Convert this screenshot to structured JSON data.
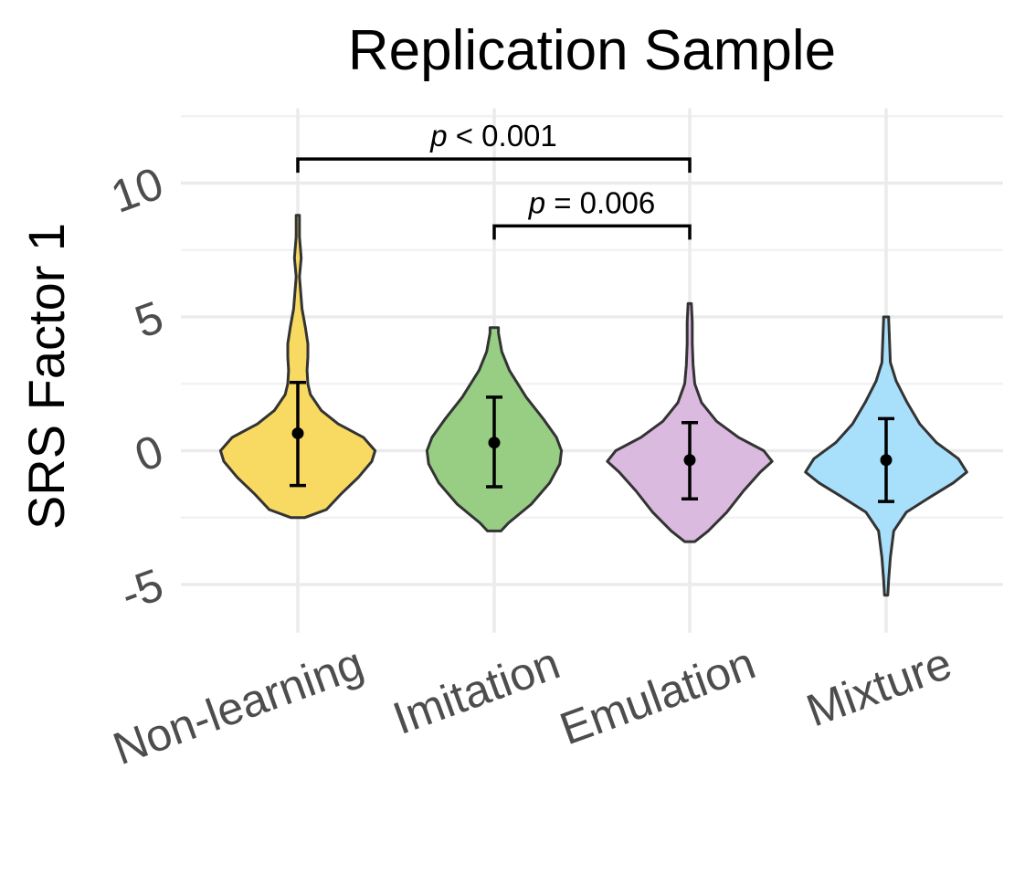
{
  "chart_data": {
    "type": "violin",
    "title": "Replication Sample",
    "ylabel": "SRS Factor 1",
    "xlabel": "",
    "ylim": [
      -6.8,
      12.8
    ],
    "yticks": [
      -5,
      0,
      5,
      10
    ],
    "ytick_labels": [
      "-5",
      "0",
      "5",
      "10"
    ],
    "grid": true,
    "categories": [
      "Non-learning",
      "Imitation",
      "Emulation",
      "Mixture"
    ],
    "colors": [
      "#F8DA62",
      "#97CE84",
      "#DABADE",
      "#A8E0FC"
    ],
    "series": [
      {
        "category": "Non-learning",
        "mean": 0.65,
        "ci_low": -1.3,
        "ci_high": 2.55,
        "density": [
          [
            -2.5,
            0.08
          ],
          [
            -2.2,
            0.34
          ],
          [
            -1.6,
            0.52
          ],
          [
            -1.0,
            0.72
          ],
          [
            -0.4,
            0.88
          ],
          [
            0.0,
            0.92
          ],
          [
            0.5,
            0.78
          ],
          [
            1.0,
            0.48
          ],
          [
            1.5,
            0.28
          ],
          [
            2.1,
            0.15
          ],
          [
            2.5,
            0.12
          ],
          [
            3.0,
            0.11
          ],
          [
            3.5,
            0.12
          ],
          [
            4.0,
            0.12
          ],
          [
            4.6,
            0.09
          ],
          [
            5.3,
            0.05
          ],
          [
            6.5,
            0.02
          ],
          [
            7.2,
            0.04
          ],
          [
            8.0,
            0.02
          ],
          [
            8.8,
            0.02
          ]
        ]
      },
      {
        "category": "Imitation",
        "mean": 0.3,
        "ci_low": -1.35,
        "ci_high": 2.0,
        "density": [
          [
            -3.0,
            0.08
          ],
          [
            -2.7,
            0.17
          ],
          [
            -2.0,
            0.44
          ],
          [
            -1.2,
            0.66
          ],
          [
            -0.5,
            0.78
          ],
          [
            0.0,
            0.8
          ],
          [
            0.5,
            0.74
          ],
          [
            1.2,
            0.58
          ],
          [
            2.0,
            0.38
          ],
          [
            3.0,
            0.18
          ],
          [
            3.7,
            0.09
          ],
          [
            4.4,
            0.05
          ],
          [
            4.6,
            0.05
          ]
        ]
      },
      {
        "category": "Emulation",
        "mean": -0.35,
        "ci_low": -1.8,
        "ci_high": 1.05,
        "density": [
          [
            -3.4,
            0.06
          ],
          [
            -3.0,
            0.22
          ],
          [
            -2.3,
            0.44
          ],
          [
            -1.5,
            0.64
          ],
          [
            -0.8,
            0.84
          ],
          [
            -0.4,
            0.98
          ],
          [
            0.0,
            0.88
          ],
          [
            0.5,
            0.58
          ],
          [
            1.1,
            0.32
          ],
          [
            1.8,
            0.14
          ],
          [
            2.5,
            0.06
          ],
          [
            3.2,
            0.04
          ],
          [
            4.0,
            0.03
          ],
          [
            4.8,
            0.03
          ],
          [
            5.5,
            0.02
          ]
        ]
      },
      {
        "category": "Mixture",
        "mean": -0.35,
        "ci_low": -1.9,
        "ci_high": 1.2,
        "density": [
          [
            -5.4,
            0.02
          ],
          [
            -4.8,
            0.03
          ],
          [
            -4.0,
            0.05
          ],
          [
            -3.0,
            0.09
          ],
          [
            -2.3,
            0.24
          ],
          [
            -1.7,
            0.54
          ],
          [
            -1.2,
            0.8
          ],
          [
            -0.8,
            0.96
          ],
          [
            -0.3,
            0.86
          ],
          [
            0.3,
            0.6
          ],
          [
            1.0,
            0.4
          ],
          [
            1.8,
            0.25
          ],
          [
            2.6,
            0.12
          ],
          [
            3.3,
            0.05
          ],
          [
            4.1,
            0.04
          ],
          [
            4.9,
            0.03
          ],
          [
            5.0,
            0.03
          ]
        ]
      }
    ],
    "annotations": [
      {
        "italic": "p",
        "text": " < 0.001",
        "from": "Non-learning",
        "to": "Emulation",
        "y": 10.9
      },
      {
        "italic": "p",
        "text": " = 0.006",
        "from": "Imitation",
        "to": "Emulation",
        "y": 8.4
      }
    ]
  }
}
